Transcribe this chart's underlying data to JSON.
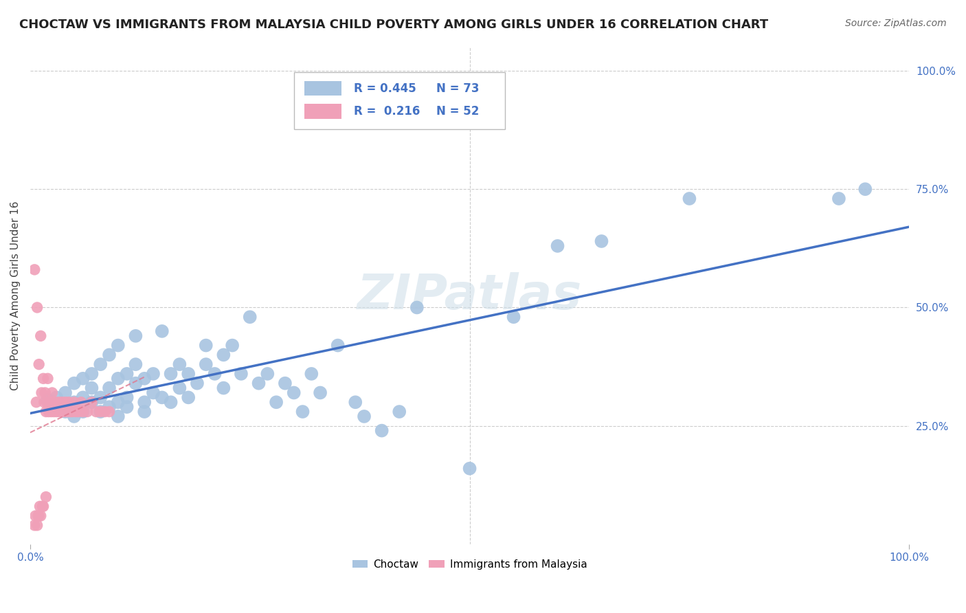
{
  "title": "CHOCTAW VS IMMIGRANTS FROM MALAYSIA CHILD POVERTY AMONG GIRLS UNDER 16 CORRELATION CHART",
  "source": "Source: ZipAtlas.com",
  "ylabel": "Child Poverty Among Girls Under 16",
  "background_color": "#ffffff",
  "watermark": "ZIPatlas",
  "blue_color": "#a8c4e0",
  "pink_color": "#f0a0b8",
  "line_blue": "#4472c4",
  "line_pink": "#e07890",
  "axis_label_color": "#4472c4",
  "choctaw_x": [
    0.02,
    0.03,
    0.03,
    0.04,
    0.04,
    0.05,
    0.05,
    0.05,
    0.06,
    0.06,
    0.06,
    0.07,
    0.07,
    0.07,
    0.08,
    0.08,
    0.08,
    0.09,
    0.09,
    0.09,
    0.1,
    0.1,
    0.1,
    0.1,
    0.11,
    0.11,
    0.11,
    0.12,
    0.12,
    0.12,
    0.13,
    0.13,
    0.13,
    0.14,
    0.14,
    0.15,
    0.15,
    0.16,
    0.16,
    0.17,
    0.17,
    0.18,
    0.18,
    0.19,
    0.2,
    0.2,
    0.21,
    0.22,
    0.22,
    0.23,
    0.24,
    0.25,
    0.26,
    0.27,
    0.28,
    0.29,
    0.3,
    0.31,
    0.32,
    0.33,
    0.35,
    0.37,
    0.38,
    0.4,
    0.42,
    0.44,
    0.5,
    0.55,
    0.6,
    0.65,
    0.75,
    0.92,
    0.95
  ],
  "choctaw_y": [
    0.305,
    0.31,
    0.29,
    0.32,
    0.28,
    0.3,
    0.34,
    0.27,
    0.31,
    0.35,
    0.28,
    0.33,
    0.3,
    0.36,
    0.28,
    0.31,
    0.38,
    0.29,
    0.33,
    0.4,
    0.3,
    0.35,
    0.27,
    0.42,
    0.31,
    0.36,
    0.29,
    0.34,
    0.38,
    0.44,
    0.3,
    0.35,
    0.28,
    0.36,
    0.32,
    0.45,
    0.31,
    0.36,
    0.3,
    0.38,
    0.33,
    0.31,
    0.36,
    0.34,
    0.38,
    0.42,
    0.36,
    0.4,
    0.33,
    0.42,
    0.36,
    0.48,
    0.34,
    0.36,
    0.3,
    0.34,
    0.32,
    0.28,
    0.36,
    0.32,
    0.42,
    0.3,
    0.27,
    0.24,
    0.28,
    0.5,
    0.16,
    0.48,
    0.63,
    0.64,
    0.73,
    0.73,
    0.75
  ],
  "malaysia_x": [
    0.005,
    0.005,
    0.006,
    0.007,
    0.008,
    0.008,
    0.009,
    0.01,
    0.01,
    0.011,
    0.012,
    0.012,
    0.013,
    0.014,
    0.015,
    0.015,
    0.016,
    0.017,
    0.018,
    0.018,
    0.019,
    0.02,
    0.021,
    0.022,
    0.023,
    0.024,
    0.025,
    0.026,
    0.027,
    0.028,
    0.03,
    0.032,
    0.033,
    0.035,
    0.036,
    0.038,
    0.04,
    0.042,
    0.044,
    0.046,
    0.048,
    0.05,
    0.052,
    0.055,
    0.058,
    0.06,
    0.065,
    0.07,
    0.075,
    0.08,
    0.085,
    0.09
  ],
  "malaysia_y": [
    0.58,
    0.04,
    0.06,
    0.3,
    0.04,
    0.5,
    0.06,
    0.38,
    0.06,
    0.08,
    0.44,
    0.06,
    0.32,
    0.08,
    0.35,
    0.08,
    0.3,
    0.32,
    0.28,
    0.1,
    0.3,
    0.35,
    0.28,
    0.3,
    0.3,
    0.28,
    0.32,
    0.3,
    0.28,
    0.3,
    0.28,
    0.3,
    0.28,
    0.28,
    0.3,
    0.28,
    0.3,
    0.28,
    0.3,
    0.28,
    0.28,
    0.3,
    0.28,
    0.28,
    0.3,
    0.28,
    0.28,
    0.3,
    0.28,
    0.28,
    0.28,
    0.28
  ],
  "xlim": [
    0.0,
    1.0
  ],
  "ylim": [
    0.0,
    1.05
  ],
  "ytick_right": [
    0.25,
    0.5,
    0.75,
    1.0
  ],
  "ytick_right_labels": [
    "25.0%",
    "50.0%",
    "75.0%",
    "100.0%"
  ],
  "grid_color": "#cccccc",
  "title_fontsize": 13,
  "axis_fontsize": 11,
  "tick_fontsize": 11
}
